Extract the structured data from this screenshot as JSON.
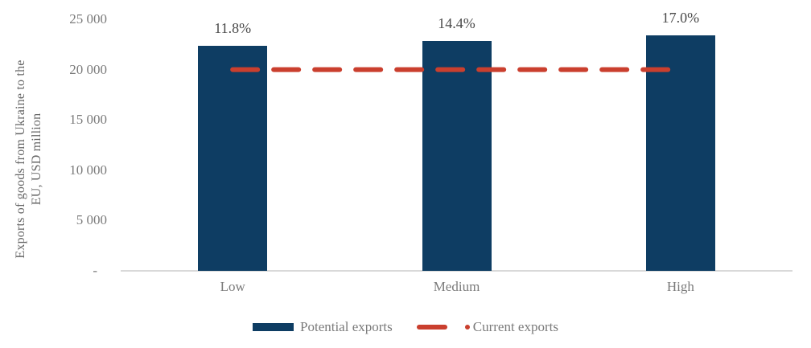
{
  "chart_data": {
    "type": "bar",
    "title": "",
    "categories": [
      "Low",
      "Medium",
      "High"
    ],
    "series": [
      {
        "name": "Potential exports",
        "type": "bar",
        "values": [
          22360,
          22880,
          23400
        ],
        "data_labels": [
          "11.8%",
          "14.4%",
          "17.0%"
        ],
        "color": "#0e3d63"
      },
      {
        "name": "Current exports",
        "type": "dashed-line",
        "value": 20000,
        "color": "#ca3f2e"
      }
    ],
    "y_axis": {
      "title_line1": "Exports of goods from Ukraine to the",
      "title_line2": "EU, USD million",
      "ylim": [
        0,
        25000
      ],
      "ticks": [
        {
          "value": 0,
          "label": "-"
        },
        {
          "value": 5000,
          "label": "5 000"
        },
        {
          "value": 10000,
          "label": "10 000"
        },
        {
          "value": 15000,
          "label": "15 000"
        },
        {
          "value": 20000,
          "label": "20 000"
        },
        {
          "value": 25000,
          "label": "25 000"
        }
      ]
    },
    "grid": false,
    "legend": {
      "position": "bottom",
      "items": [
        {
          "label": "Potential exports",
          "marker": "bar-swatch",
          "color": "#0e3d63"
        },
        {
          "label": "Current exports",
          "marker": "dash-dot-line",
          "color": "#ca3f2e"
        }
      ]
    },
    "colors": {
      "bar_navy": "#0e3d63",
      "line_red": "#ca3f2e",
      "axis_gray": "#d9d9d9",
      "text_gray": "#7b7b7b",
      "label_dark_gray": "#4a4a4a"
    }
  }
}
